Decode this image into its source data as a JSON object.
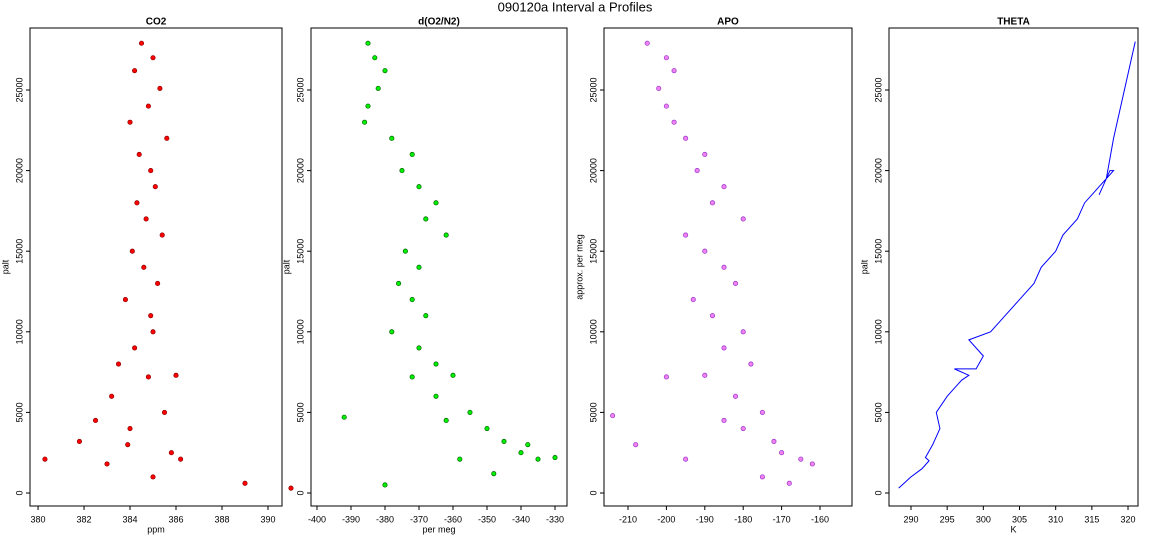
{
  "title": "090120a   Interval a Profiles",
  "chart_data": [
    {
      "type": "scatter",
      "title": "CO2",
      "xlabel": "ppm",
      "ylabel": "palt",
      "color": "#ff0000",
      "edge": "#8b0000",
      "x": [
        384.5,
        385.0,
        384.2,
        385.3,
        384.8,
        384.0,
        385.6,
        384.4,
        384.9,
        385.1,
        384.3,
        384.7,
        385.4,
        384.1,
        384.6,
        385.2,
        383.8,
        384.9,
        385.0,
        384.2,
        383.5,
        386.0,
        384.8,
        383.2,
        385.5,
        382.5,
        384.0,
        381.8,
        385.8,
        380.3,
        386.2,
        383.0,
        389.0,
        391.0,
        385.0,
        383.9
      ],
      "values": [
        27900,
        27000,
        26200,
        25100,
        24000,
        23000,
        22000,
        21000,
        20000,
        19000,
        18000,
        17000,
        16000,
        15000,
        14000,
        13000,
        12000,
        11000,
        10000,
        9000,
        8000,
        7300,
        7200,
        6000,
        5000,
        4500,
        4000,
        3200,
        2500,
        2100,
        2100,
        1800,
        600,
        300,
        1000,
        3000
      ],
      "xlim": [
        379.65,
        390.61
      ],
      "ylim": [
        -806,
        28846
      ],
      "xticks": [
        380,
        382,
        384,
        386,
        388,
        390
      ],
      "yticks": [
        0,
        5000,
        10000,
        15000,
        20000,
        25000
      ]
    },
    {
      "type": "scatter",
      "title": "d(O2/N2)",
      "xlabel": "per meg",
      "ylabel": "palt",
      "color": "#00ee00",
      "edge": "#006400",
      "x": [
        -385,
        -383,
        -380,
        -382,
        -385,
        -386,
        -378,
        -372,
        -375,
        -370,
        -365,
        -368,
        -362,
        -374,
        -370,
        -376,
        -372,
        -368,
        -378,
        -370,
        -365,
        -360,
        -372,
        -365,
        -355,
        -362,
        -350,
        -345,
        -340,
        -358,
        -335,
        -330,
        -392,
        -380,
        -348,
        -338
      ],
      "values": [
        27900,
        27000,
        26200,
        25100,
        24000,
        23000,
        22000,
        21000,
        20000,
        19000,
        18000,
        17000,
        16000,
        15000,
        14000,
        13000,
        12000,
        11000,
        10000,
        9000,
        8000,
        7300,
        7200,
        6000,
        5000,
        4500,
        4000,
        3200,
        2500,
        2100,
        2100,
        2200,
        4700,
        500,
        1200,
        3000
      ],
      "xlim": [
        -401.76,
        -326.47
      ],
      "ylim": [
        -806,
        28846
      ],
      "xticks": [
        -400,
        -390,
        -380,
        -370,
        -360,
        -350,
        -340,
        -330
      ],
      "yticks": [
        0,
        5000,
        10000,
        15000,
        20000,
        25000
      ]
    },
    {
      "type": "scatter",
      "title": "APO",
      "ylabel": "approx. per meg",
      "color": "#ee82ee",
      "edge": "#9932cc",
      "x": [
        -205,
        -200,
        -198,
        -202,
        -200,
        -198,
        -195,
        -190,
        -192,
        -185,
        -188,
        -180,
        -195,
        -190,
        -185,
        -182,
        -193,
        -188,
        -180,
        -185,
        -178,
        -190,
        -200,
        -182,
        -175,
        -185,
        -180,
        -172,
        -170,
        -195,
        -165,
        -162,
        -214,
        -168,
        -175,
        -208
      ],
      "values": [
        27900,
        27000,
        26200,
        25100,
        24000,
        23000,
        22000,
        21000,
        20000,
        19000,
        18000,
        17000,
        16000,
        15000,
        14000,
        13000,
        12000,
        11000,
        10000,
        9000,
        8000,
        7300,
        7200,
        6000,
        5000,
        4500,
        4000,
        3200,
        2500,
        2100,
        2100,
        1800,
        4800,
        600,
        1000,
        3000
      ],
      "xlim": [
        -216.25,
        -151.67
      ],
      "ylim": [
        -806,
        28846
      ],
      "xticks": [
        -210,
        -200,
        -190,
        -180,
        -170,
        -160
      ],
      "yticks": [
        0,
        5000,
        10000,
        15000,
        20000,
        25000
      ]
    },
    {
      "type": "line",
      "title": "THETA",
      "xlabel": "K",
      "ylabel": "palt",
      "color": "#0000ff",
      "x": [
        288.3,
        290,
        291.5,
        292.5,
        292,
        293,
        294,
        293.5,
        295,
        296,
        297,
        298,
        296,
        299,
        300,
        298,
        301,
        303,
        305,
        307,
        308,
        310,
        311,
        313,
        314,
        315,
        316,
        317,
        318,
        317.5,
        316,
        317,
        318,
        319,
        320,
        321
      ],
      "values": [
        300,
        1000,
        1500,
        2000,
        2200,
        3000,
        4000,
        5000,
        6000,
        6500,
        7000,
        7300,
        7700,
        7700,
        8500,
        9500,
        10000,
        11000,
        12000,
        13000,
        14000,
        15000,
        16000,
        17000,
        18000,
        18500,
        19000,
        19500,
        20000,
        20000,
        18500,
        19500,
        22000,
        24000,
        26000,
        28000
      ],
      "xlim": [
        286.96,
        321.38
      ],
      "ylim": [
        -806,
        28846
      ],
      "xticks": [
        290,
        295,
        300,
        305,
        310,
        315,
        320
      ],
      "yticks": [
        0,
        5000,
        10000,
        15000,
        20000,
        25000
      ]
    }
  ]
}
